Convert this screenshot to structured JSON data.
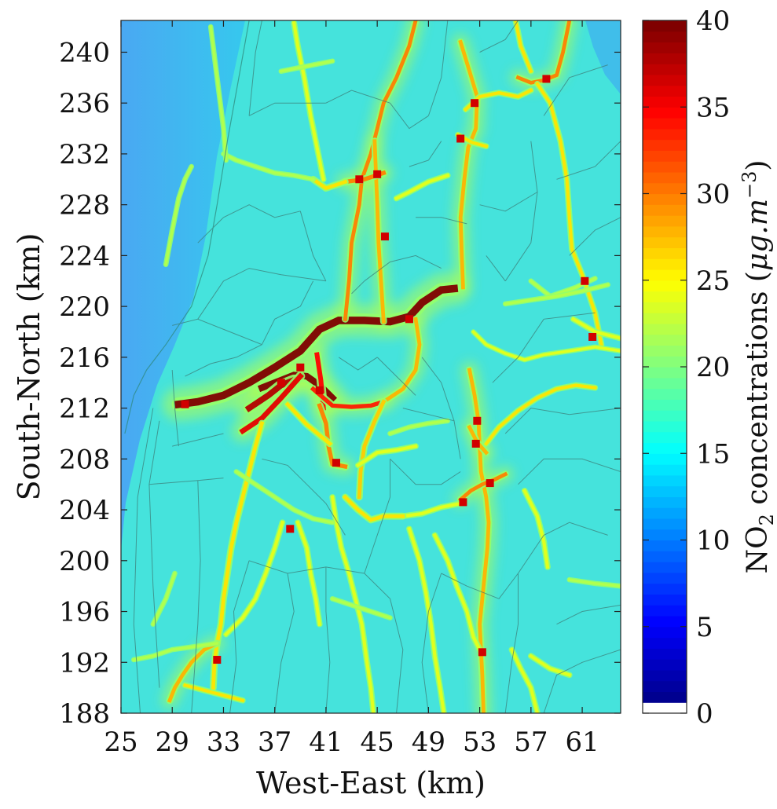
{
  "map": {
    "xaxis": {
      "label": "West-East (km)",
      "range": [
        25,
        64
      ],
      "ticks": [
        25,
        29,
        33,
        37,
        41,
        45,
        49,
        53,
        57,
        61
      ]
    },
    "yaxis": {
      "label": "South-North (km)",
      "range": [
        188,
        242.5
      ],
      "ticks": [
        188,
        192,
        196,
        200,
        204,
        208,
        212,
        216,
        220,
        224,
        228,
        232,
        236,
        240
      ]
    },
    "colorbar": {
      "label_prefix": "NO",
      "label_sub": "2",
      "label_main": " concentrations (",
      "label_unit": "μg.m",
      "label_sup": "−3",
      "label_close": ")",
      "range": [
        0,
        40
      ],
      "ticks": [
        0,
        5,
        10,
        15,
        20,
        25,
        30,
        35,
        40
      ],
      "colormap": "jet"
    },
    "background_level": 8,
    "ocean_color": "#3aa6f0",
    "land_base_color": "#3ee0e0"
  }
}
